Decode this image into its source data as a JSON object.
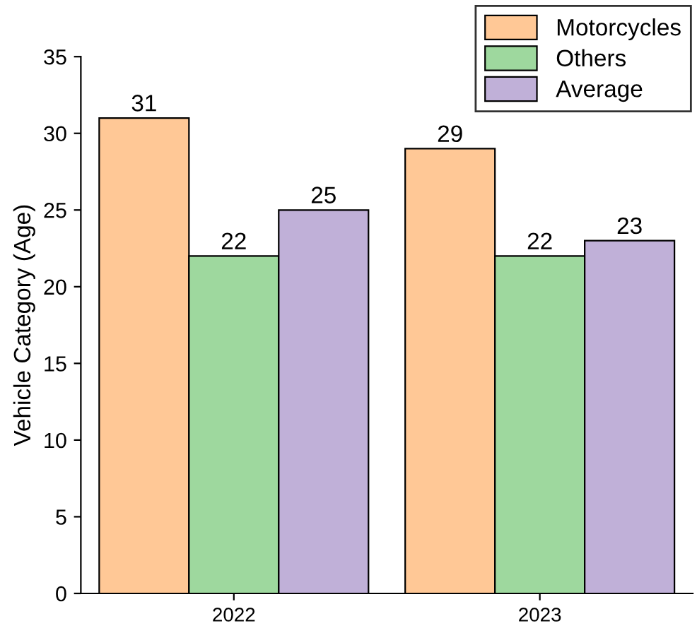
{
  "chart_data": {
    "type": "bar",
    "ylabel": "Vehicle Category (Age)",
    "categories": [
      "2022",
      "2023"
    ],
    "series": [
      {
        "name": "Motorcycles",
        "color": "#ffc896",
        "values": [
          31,
          29
        ]
      },
      {
        "name": "Others",
        "color": "#9ed89e",
        "values": [
          22,
          22
        ]
      },
      {
        "name": "Average",
        "color": "#c0b0d8",
        "values": [
          25,
          23
        ]
      }
    ],
    "ylim": [
      0,
      35
    ],
    "yticks": [
      0,
      5,
      10,
      15,
      20,
      25,
      30,
      35
    ],
    "data_labels": true,
    "legend": "top right",
    "grid": false
  }
}
